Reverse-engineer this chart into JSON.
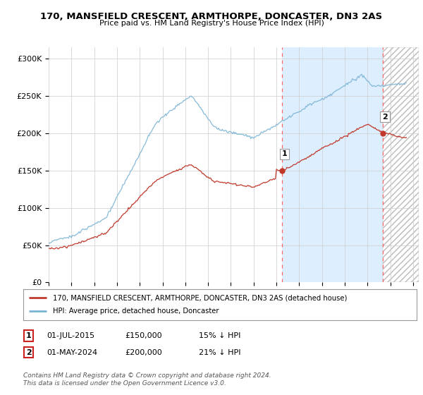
{
  "title": "170, MANSFIELD CRESCENT, ARMTHORPE, DONCASTER, DN3 2AS",
  "subtitle": "Price paid vs. HM Land Registry's House Price Index (HPI)",
  "ylabel_ticks": [
    "£0",
    "£50K",
    "£100K",
    "£150K",
    "£200K",
    "£250K",
    "£300K"
  ],
  "ytick_vals": [
    0,
    50000,
    100000,
    150000,
    200000,
    250000,
    300000
  ],
  "ylim": [
    0,
    315000
  ],
  "xlim_start": 1995.0,
  "xlim_end": 2027.5,
  "hpi_color": "#7ab3d4",
  "price_color": "#c0392b",
  "sale1_date": 2015.5,
  "sale1_price": 150000,
  "sale2_date": 2024.33,
  "sale2_price": 200000,
  "legend_label1": "170, MANSFIELD CRESCENT, ARMTHORPE, DONCASTER, DN3 2AS (detached house)",
  "legend_label2": "HPI: Average price, detached house, Doncaster",
  "annotation1_label": "1",
  "annotation2_label": "2",
  "table_row1": [
    "1",
    "01-JUL-2015",
    "£150,000",
    "15% ↓ HPI"
  ],
  "table_row2": [
    "2",
    "01-MAY-2024",
    "£200,000",
    "21% ↓ HPI"
  ],
  "footer": "Contains HM Land Registry data © Crown copyright and database right 2024.\nThis data is licensed under the Open Government Licence v3.0.",
  "grid_color": "#cccccc",
  "bg_color": "#ffffff",
  "highlight_color": "#ddeeff",
  "dashed_color": "#ff6666"
}
